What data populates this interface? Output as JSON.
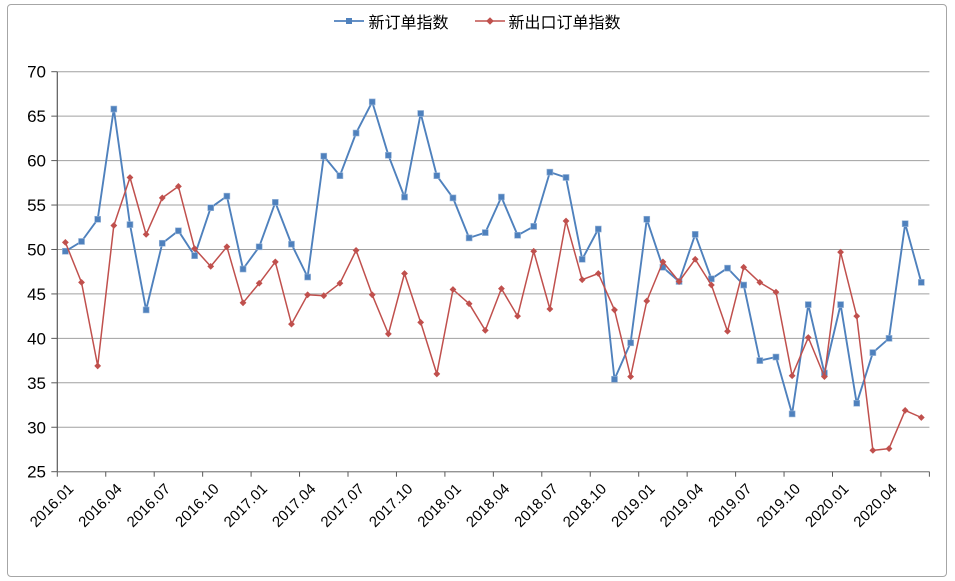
{
  "legend": {
    "series1": "新订单指数",
    "series2": "新出口订单指数"
  },
  "colors": {
    "series1": "#4F81BD",
    "series2": "#C0504D",
    "gridline": "#a0a0a0",
    "axis": "#808080",
    "y_axis": "#595959",
    "tick": "#595959",
    "text": "#000000",
    "frame_border": "#a6a6a6"
  },
  "chart_data": {
    "type": "line",
    "title": "",
    "xlabel": "",
    "ylabel": "",
    "ylim": [
      25,
      70
    ],
    "y_ticks": [
      25,
      30,
      35,
      40,
      45,
      50,
      55,
      60,
      65,
      70
    ],
    "grid": true,
    "legend_position": "top",
    "x_tick_labels": [
      "2016.01",
      "2016.04",
      "2016.07",
      "2016.10",
      "2017.01",
      "2017.04",
      "2017.07",
      "2017.10",
      "2018.01",
      "2018.04",
      "2018.07",
      "2018.10",
      "2019.01",
      "2019.04",
      "2019.07",
      "2019.10",
      "2020.01",
      "2020.04"
    ],
    "categories": [
      "2016.01",
      "2016.02",
      "2016.03",
      "2016.04",
      "2016.05",
      "2016.06",
      "2016.07",
      "2016.08",
      "2016.09",
      "2016.10",
      "2016.11",
      "2016.12",
      "2017.01",
      "2017.02",
      "2017.03",
      "2017.04",
      "2017.05",
      "2017.06",
      "2017.07",
      "2017.08",
      "2017.09",
      "2017.10",
      "2017.11",
      "2017.12",
      "2018.01",
      "2018.02",
      "2018.03",
      "2018.04",
      "2018.05",
      "2018.06",
      "2018.07",
      "2018.08",
      "2018.09",
      "2018.10",
      "2018.11",
      "2018.12",
      "2019.01",
      "2019.02",
      "2019.03",
      "2019.04",
      "2019.05",
      "2019.06",
      "2019.07",
      "2019.08",
      "2019.09",
      "2019.10",
      "2019.11",
      "2019.12",
      "2020.01",
      "2020.02",
      "2020.03",
      "2020.04",
      "2020.05",
      "2020.06"
    ],
    "series": [
      {
        "name": "新订单指数",
        "color": "#4F81BD",
        "marker": "square",
        "values": [
          49.8,
          50.9,
          53.4,
          65.8,
          52.8,
          43.2,
          50.7,
          52.1,
          49.3,
          54.7,
          56.0,
          47.8,
          50.3,
          55.3,
          50.6,
          46.9,
          60.5,
          58.3,
          63.1,
          66.6,
          60.6,
          55.9,
          65.3,
          58.3,
          55.8,
          51.3,
          51.9,
          55.9,
          51.6,
          52.6,
          58.7,
          58.1,
          48.9,
          52.3,
          35.4,
          39.5,
          53.4,
          48.0,
          46.4,
          51.7,
          46.7,
          47.9,
          46.0,
          37.5,
          37.9,
          31.5,
          43.8,
          36.1,
          43.8,
          32.7,
          38.4,
          40.0,
          52.9,
          46.3
        ]
      },
      {
        "name": "新出口订单指数",
        "color": "#C0504D",
        "marker": "diamond",
        "values": [
          50.8,
          46.3,
          36.9,
          52.7,
          58.1,
          51.7,
          55.8,
          57.1,
          50.1,
          48.1,
          50.3,
          44.0,
          46.2,
          48.6,
          41.6,
          44.9,
          44.8,
          46.2,
          49.9,
          44.9,
          40.5,
          47.3,
          41.8,
          36.0,
          45.5,
          43.9,
          40.9,
          45.6,
          42.5,
          49.8,
          43.3,
          53.2,
          46.6,
          47.3,
          43.2,
          35.7,
          44.2,
          48.6,
          46.4,
          48.9,
          46.0,
          40.8,
          48.0,
          46.3,
          45.2,
          35.8,
          40.1,
          35.7,
          49.7,
          42.5,
          27.4,
          27.6,
          31.9,
          31.1
        ]
      }
    ]
  }
}
